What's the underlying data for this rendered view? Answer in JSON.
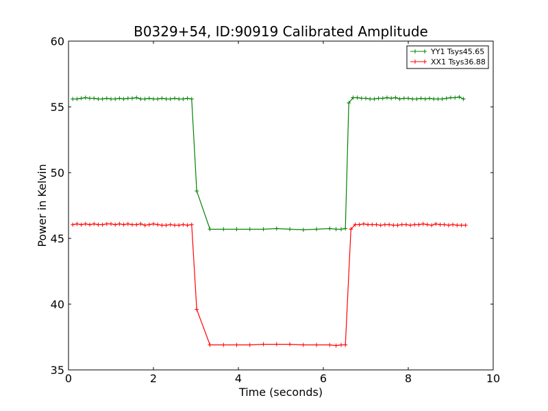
{
  "chart_data": {
    "type": "line",
    "title": "B0329+54, ID:90919 Calibrated Amplitude",
    "xlabel": "Time (seconds)",
    "ylabel": "Power in Kelvin",
    "xlim": [
      0,
      10
    ],
    "ylim": [
      35,
      60
    ],
    "x_ticks": [
      "0",
      "2",
      "4",
      "6",
      "8",
      "10"
    ],
    "y_ticks": [
      "35",
      "40",
      "45",
      "50",
      "55",
      "60"
    ],
    "grid": false,
    "legend": "top-right",
    "series": [
      {
        "name": "YY1 Tsys45.65",
        "color": "#008000",
        "marker": "plus",
        "x": [
          0.1,
          0.2,
          0.3,
          0.4,
          0.5,
          0.6,
          0.7,
          0.8,
          0.9,
          1.0,
          1.1,
          1.2,
          1.3,
          1.4,
          1.5,
          1.6,
          1.7,
          1.8,
          1.9,
          2.0,
          2.1,
          2.2,
          2.3,
          2.4,
          2.5,
          2.6,
          2.7,
          2.8,
          2.9,
          3.02,
          3.33,
          3.65,
          3.96,
          4.27,
          4.59,
          4.9,
          5.21,
          5.53,
          5.84,
          6.15,
          6.3,
          6.42,
          6.52,
          6.6,
          6.7,
          6.8,
          6.9,
          7.0,
          7.1,
          7.2,
          7.3,
          7.4,
          7.5,
          7.6,
          7.7,
          7.8,
          7.9,
          8.0,
          8.1,
          8.2,
          8.3,
          8.4,
          8.5,
          8.6,
          8.7,
          8.8,
          8.9,
          9.0,
          9.1,
          9.2,
          9.3
        ],
        "y": [
          55.6,
          55.6,
          55.65,
          55.7,
          55.65,
          55.65,
          55.6,
          55.6,
          55.65,
          55.6,
          55.6,
          55.65,
          55.6,
          55.65,
          55.65,
          55.7,
          55.6,
          55.6,
          55.65,
          55.6,
          55.6,
          55.65,
          55.6,
          55.6,
          55.65,
          55.6,
          55.6,
          55.65,
          55.6,
          48.6,
          45.7,
          45.7,
          45.7,
          45.7,
          45.7,
          45.75,
          45.7,
          45.65,
          45.7,
          45.75,
          45.7,
          45.7,
          45.75,
          55.3,
          55.7,
          55.7,
          55.65,
          55.65,
          55.6,
          55.6,
          55.65,
          55.65,
          55.7,
          55.65,
          55.7,
          55.6,
          55.65,
          55.65,
          55.6,
          55.6,
          55.65,
          55.6,
          55.65,
          55.6,
          55.6,
          55.6,
          55.65,
          55.7,
          55.7,
          55.75,
          55.6
        ]
      },
      {
        "name": "XX1 Tsys36.88",
        "color": "#ff0000",
        "marker": "plus",
        "x": [
          0.1,
          0.2,
          0.3,
          0.4,
          0.5,
          0.6,
          0.7,
          0.8,
          0.9,
          1.0,
          1.1,
          1.2,
          1.3,
          1.4,
          1.5,
          1.6,
          1.7,
          1.8,
          1.9,
          2.0,
          2.1,
          2.2,
          2.3,
          2.4,
          2.5,
          2.6,
          2.7,
          2.8,
          2.9,
          3.02,
          3.33,
          3.65,
          3.96,
          4.27,
          4.59,
          4.9,
          5.21,
          5.53,
          5.84,
          6.15,
          6.3,
          6.42,
          6.52,
          6.65,
          6.75,
          6.85,
          6.95,
          7.05,
          7.15,
          7.25,
          7.35,
          7.45,
          7.55,
          7.65,
          7.75,
          7.85,
          7.95,
          8.05,
          8.15,
          8.25,
          8.35,
          8.45,
          8.55,
          8.65,
          8.75,
          8.85,
          8.95,
          9.05,
          9.15,
          9.25,
          9.35
        ],
        "y": [
          46.05,
          46.1,
          46.05,
          46.1,
          46.05,
          46.1,
          46.05,
          46.05,
          46.1,
          46.1,
          46.05,
          46.1,
          46.05,
          46.1,
          46.05,
          46.05,
          46.1,
          46.0,
          46.05,
          46.1,
          46.05,
          46.0,
          46.0,
          46.05,
          46.0,
          46.0,
          46.05,
          46.0,
          46.05,
          39.6,
          36.9,
          36.9,
          36.9,
          36.9,
          36.95,
          36.95,
          36.95,
          36.9,
          36.9,
          36.9,
          36.85,
          36.9,
          36.9,
          45.7,
          46.05,
          46.05,
          46.1,
          46.05,
          46.05,
          46.05,
          46.0,
          46.05,
          46.05,
          46.0,
          46.0,
          46.05,
          46.05,
          46.0,
          46.05,
          46.05,
          46.1,
          46.05,
          46.0,
          46.1,
          46.05,
          46.05,
          46.0,
          46.05,
          46.0,
          46.0,
          46.0
        ]
      }
    ]
  }
}
